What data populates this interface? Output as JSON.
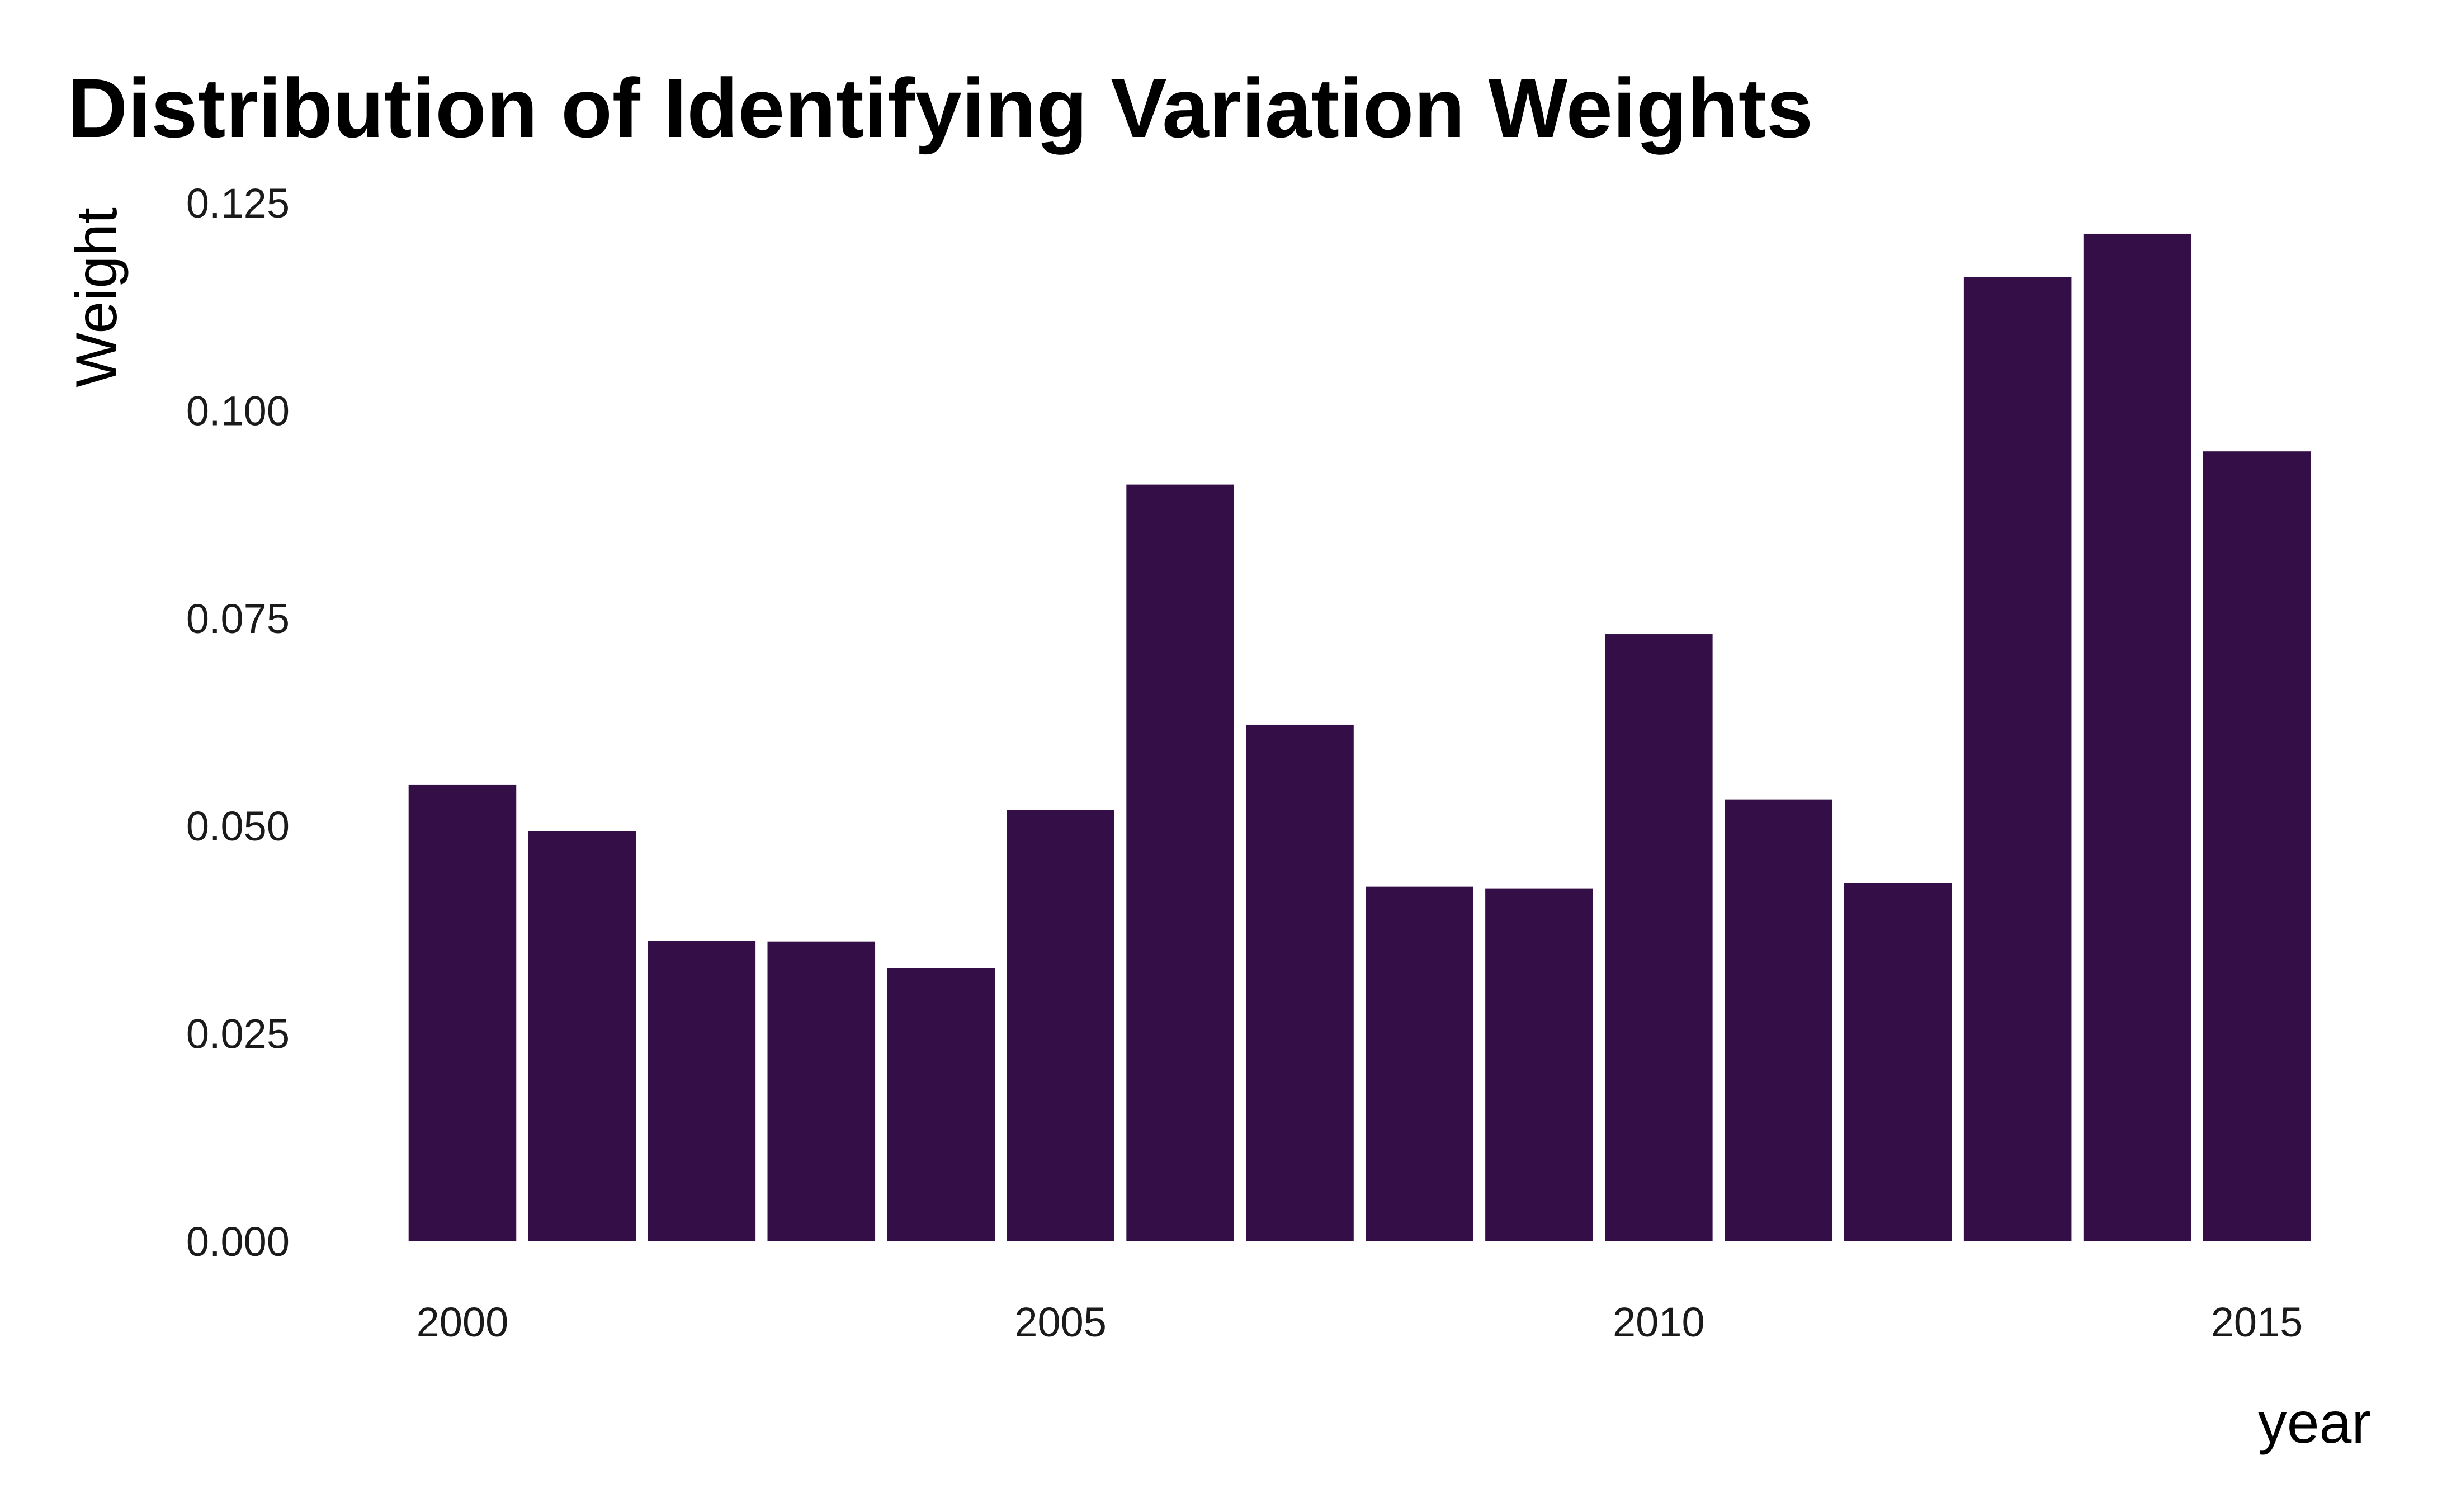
{
  "chart_data": {
    "type": "bar",
    "title": "Distribution of Identifying Variation Weights",
    "xlabel": "year",
    "ylabel": "Weight",
    "x": [
      2000,
      2001,
      2002,
      2003,
      2004,
      2005,
      2006,
      2007,
      2008,
      2009,
      2010,
      2011,
      2012,
      2013,
      2014,
      2015
    ],
    "values": [
      0.055,
      0.0494,
      0.0362,
      0.0361,
      0.0329,
      0.0519,
      0.0911,
      0.0622,
      0.0427,
      0.0425,
      0.0731,
      0.0532,
      0.0431,
      0.1161,
      0.1213,
      0.0951
    ],
    "ylim": [
      0,
      0.125
    ],
    "yticks": [
      "0.000",
      "0.025",
      "0.050",
      "0.075",
      "0.100",
      "0.125"
    ],
    "xticks": [
      "2000",
      "2005",
      "2010",
      "2015"
    ],
    "bar_color": "#330e47",
    "grid": false,
    "legend": "none"
  }
}
